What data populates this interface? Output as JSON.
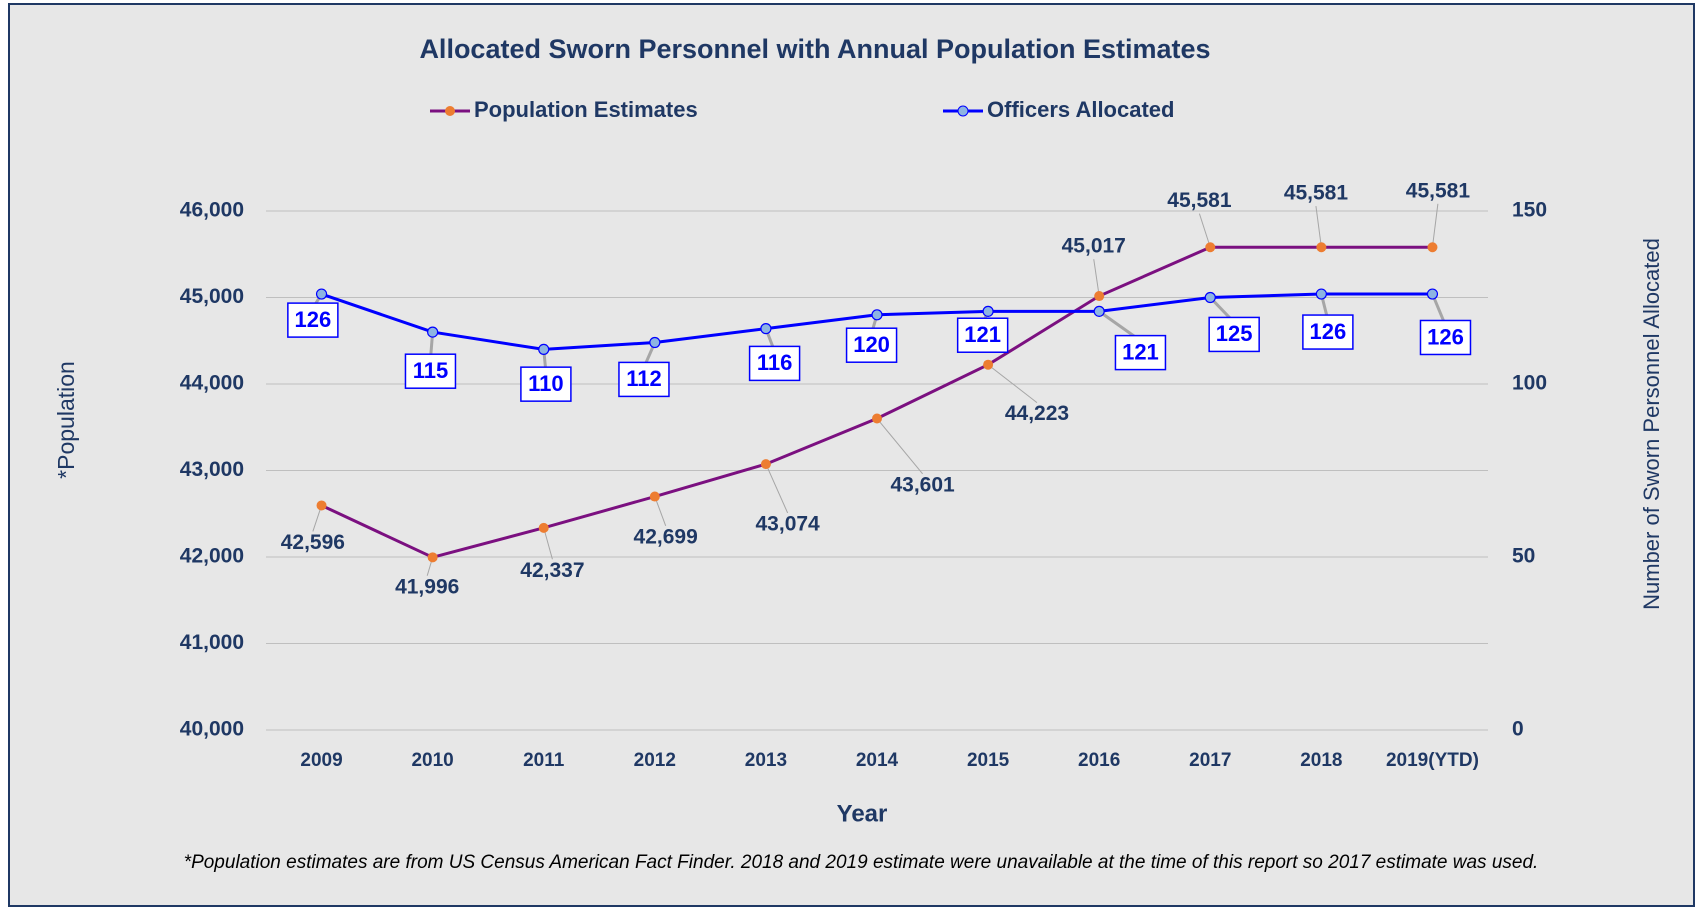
{
  "chart_data": {
    "type": "line",
    "title": "Allocated Sworn Personnel with Annual Population Estimates",
    "x_label": "Year",
    "y_label": "*Population",
    "y2_label": "Number of Sworn Personnel Allocated",
    "footnote": "*Population estimates are from US Census American Fact Finder. 2018 and 2019 estimate were unavailable at the time of this report so 2017 estimate was used.",
    "categories": [
      "2009",
      "2010",
      "2011",
      "2012",
      "2013",
      "2014",
      "2015",
      "2016",
      "2017",
      "2018",
      "2019(YTD)"
    ],
    "series": [
      {
        "name": "Population Estimates",
        "color": "#7b1080",
        "marker_color": "#ed7d31",
        "values": [
          42596,
          41996,
          42337,
          42699,
          43074,
          43601,
          44223,
          45017,
          45581,
          45581,
          45581
        ],
        "value_labels": [
          "42,596",
          "41,996",
          "42,337",
          "42,699",
          "43,074",
          "43,601",
          "44,223",
          "45,017",
          "45,581",
          "45,581",
          "45,581"
        ]
      },
      {
        "name": "Officers Allocated",
        "color": "#0000ff",
        "marker_color": "#8db4e2",
        "axis": "y2",
        "values": [
          126,
          115,
          110,
          112,
          116,
          120,
          121,
          121,
          125,
          126,
          126
        ]
      }
    ],
    "ylim": [
      40000,
      46000
    ],
    "yticks": [
      {
        "value": 40000,
        "label": "40,000"
      },
      {
        "value": 41000,
        "label": "41,000"
      },
      {
        "value": 42000,
        "label": "42,000"
      },
      {
        "value": 43000,
        "label": "43,000"
      },
      {
        "value": 44000,
        "label": "44,000"
      },
      {
        "value": 45000,
        "label": "45,000"
      },
      {
        "value": 46000,
        "label": "46,000"
      }
    ],
    "y2lim": [
      0,
      150
    ],
    "y2ticks": [
      0,
      50,
      100,
      150
    ],
    "grid": true,
    "legend": "top"
  }
}
